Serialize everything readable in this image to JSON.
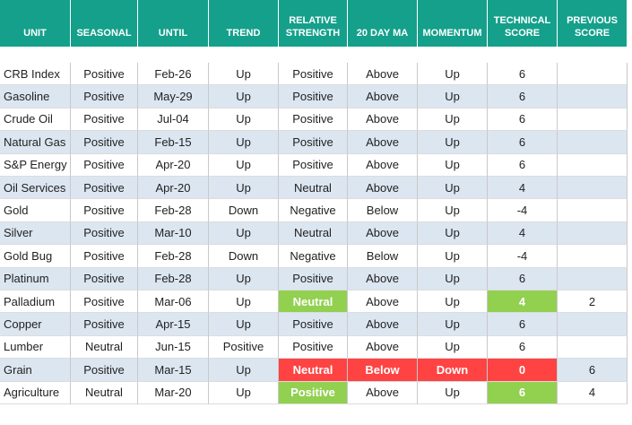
{
  "header": {
    "columns": [
      "UNIT",
      "SEASONAL",
      "UNTIL",
      "TREND",
      "RELATIVE STRENGTH",
      "20 DAY MA",
      "MOMENTUM",
      "TECHNICAL SCORE",
      "PREVIOUS SCORE"
    ]
  },
  "table": {
    "rows": [
      [
        "CRB Index",
        "Positive",
        "Feb-26",
        "Up",
        "Positive",
        "Above",
        "Up",
        6,
        null
      ],
      [
        "Gasoline",
        "Positive",
        "May-29",
        "Up",
        "Positive",
        "Above",
        "Up",
        6,
        null
      ],
      [
        "Crude Oil",
        "Positive",
        "Jul-04",
        "Up",
        "Positive",
        "Above",
        "Up",
        6,
        null
      ],
      [
        "Natural Gas",
        "Positive",
        "Feb-15",
        "Up",
        "Positive",
        "Above",
        "Up",
        6,
        null
      ],
      [
        "S&P Energy",
        "Positive",
        "Apr-20",
        "Up",
        "Positive",
        "Above",
        "Up",
        6,
        null
      ],
      [
        "Oil Services",
        "Positive",
        "Apr-20",
        "Up",
        "Neutral",
        "Above",
        "Up",
        4,
        null
      ],
      [
        "Gold",
        "Positive",
        "Feb-28",
        "Down",
        "Negative",
        "Below",
        "Up",
        -4,
        null
      ],
      [
        "Silver",
        "Positive",
        "Mar-10",
        "Up",
        "Neutral",
        "Above",
        "Up",
        4,
        null
      ],
      [
        "Gold Bug",
        "Positive",
        "Feb-28",
        "Down",
        "Negative",
        "Below",
        "Up",
        -4,
        null
      ],
      [
        "Platinum",
        "Positive",
        "Feb-28",
        "Up",
        "Positive",
        "Above",
        "Up",
        6,
        null
      ],
      [
        "Palladium",
        "Positive",
        "Mar-06",
        "Up",
        "Neutral",
        "Above",
        "Up",
        4,
        2
      ],
      [
        "Copper",
        "Positive",
        "Apr-15",
        "Up",
        "Positive",
        "Above",
        "Up",
        6,
        null
      ],
      [
        "Lumber",
        "Neutral",
        "Jun-15",
        "Positive",
        "Positive",
        "Above",
        "Up",
        6,
        null
      ],
      [
        "Grain",
        "Positive",
        "Mar-15",
        "Up",
        "Neutral",
        "Below",
        "Down",
        0,
        6
      ],
      [
        "Agriculture",
        "Neutral",
        "Mar-20",
        "Up",
        "Positive",
        "Above",
        "Up",
        6,
        4
      ]
    ]
  }
}
